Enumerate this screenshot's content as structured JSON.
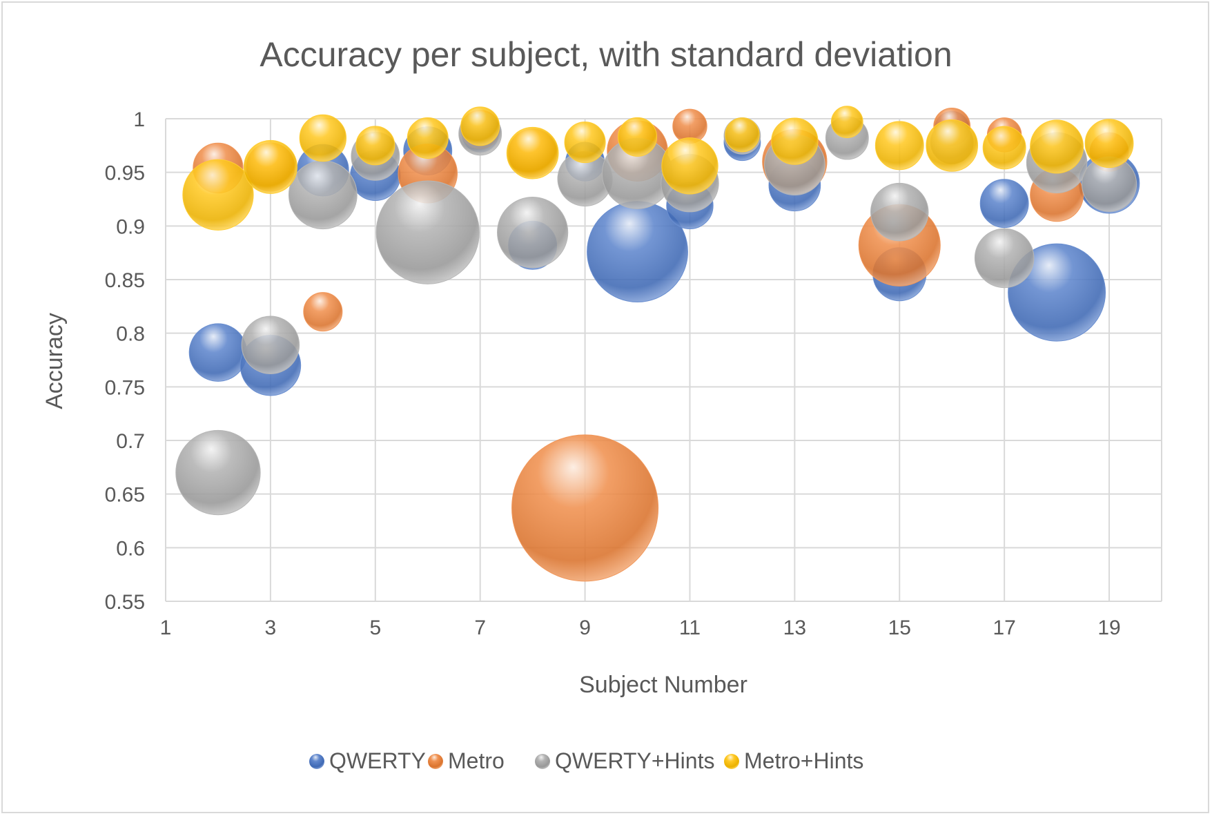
{
  "chart_data": {
    "type": "bubble",
    "title": "Accuracy per subject, with standard deviation",
    "xlabel": "Subject Number",
    "ylabel": "Accuracy",
    "xlim": [
      1,
      20
    ],
    "ylim": [
      0.55,
      1
    ],
    "xticks": [
      "1",
      "3",
      "5",
      "7",
      "9",
      "11",
      "13",
      "15",
      "17",
      "19"
    ],
    "yticks": [
      "0.55",
      "0.6",
      "0.65",
      "0.7",
      "0.75",
      "0.8",
      "0.85",
      "0.9",
      "0.95",
      "1"
    ],
    "grid": true,
    "legend_position": "bottom",
    "size_meaning": "standard deviation",
    "series": [
      {
        "name": "QWERTY",
        "color": "#4472c4",
        "points": [
          {
            "x": 2,
            "y": 0.782,
            "size": 0.02
          },
          {
            "x": 3,
            "y": 0.77,
            "size": 0.022
          },
          {
            "x": 4,
            "y": 0.952,
            "size": 0.016
          },
          {
            "x": 5,
            "y": 0.947,
            "size": 0.015
          },
          {
            "x": 6,
            "y": 0.97,
            "size": 0.014
          },
          {
            "x": 7,
            "y": 0.986,
            "size": 0.008
          },
          {
            "x": 8,
            "y": 0.882,
            "size": 0.014
          },
          {
            "x": 9,
            "y": 0.96,
            "size": 0.009
          },
          {
            "x": 10,
            "y": 0.876,
            "size": 0.061
          },
          {
            "x": 11,
            "y": 0.919,
            "size": 0.013
          },
          {
            "x": 12,
            "y": 0.978,
            "size": 0.008
          },
          {
            "x": 13,
            "y": 0.938,
            "size": 0.016
          },
          {
            "x": 15,
            "y": 0.855,
            "size": 0.017
          },
          {
            "x": 16,
            "y": 0.991,
            "size": 0.007
          },
          {
            "x": 17,
            "y": 0.921,
            "size": 0.014
          },
          {
            "x": 18,
            "y": 0.838,
            "size": 0.057
          },
          {
            "x": 19,
            "y": 0.94,
            "size": 0.022
          }
        ]
      },
      {
        "name": "Metro",
        "color": "#ed7d31",
        "points": [
          {
            "x": 2,
            "y": 0.954,
            "size": 0.015
          },
          {
            "x": 3,
            "y": 0.955,
            "size": 0.014
          },
          {
            "x": 4,
            "y": 0.82,
            "size": 0.009
          },
          {
            "x": 6,
            "y": 0.949,
            "size": 0.021
          },
          {
            "x": 7,
            "y": 0.99,
            "size": 0.009
          },
          {
            "x": 8,
            "y": 0.968,
            "size": 0.014
          },
          {
            "x": 10,
            "y": 0.97,
            "size": 0.022
          },
          {
            "x": 11,
            "y": 0.993,
            "size": 0.007
          },
          {
            "x": 13,
            "y": 0.96,
            "size": 0.025
          },
          {
            "x": 15,
            "y": 0.882,
            "size": 0.04
          },
          {
            "x": 16,
            "y": 0.993,
            "size": 0.008
          },
          {
            "x": 17,
            "y": 0.985,
            "size": 0.007
          },
          {
            "x": 18,
            "y": 0.929,
            "size": 0.017
          },
          {
            "x": 19,
            "y": 0.969,
            "size": 0.009
          },
          {
            "x": 9,
            "y": 0.637,
            "size": 0.129
          }
        ]
      },
      {
        "name": "QWERTY+Hints",
        "color": "#a5a5a5",
        "points": [
          {
            "x": 2,
            "y": 0.67,
            "size": 0.043
          },
          {
            "x": 3,
            "y": 0.789,
            "size": 0.02
          },
          {
            "x": 4,
            "y": 0.929,
            "size": 0.028
          },
          {
            "x": 5,
            "y": 0.965,
            "size": 0.014
          },
          {
            "x": 6,
            "y": 0.894,
            "size": 0.064
          },
          {
            "x": 7,
            "y": 0.986,
            "size": 0.011
          },
          {
            "x": 8,
            "y": 0.894,
            "size": 0.03
          },
          {
            "x": 9,
            "y": 0.944,
            "size": 0.018
          },
          {
            "x": 10,
            "y": 0.949,
            "size": 0.03
          },
          {
            "x": 11,
            "y": 0.94,
            "size": 0.02
          },
          {
            "x": 12,
            "y": 0.984,
            "size": 0.008
          },
          {
            "x": 13,
            "y": 0.957,
            "size": 0.022
          },
          {
            "x": 14,
            "y": 0.982,
            "size": 0.011
          },
          {
            "x": 15,
            "y": 0.913,
            "size": 0.02
          },
          {
            "x": 16,
            "y": 0.978,
            "size": 0.011
          },
          {
            "x": 17,
            "y": 0.87,
            "size": 0.021
          },
          {
            "x": 18,
            "y": 0.959,
            "size": 0.022
          },
          {
            "x": 19,
            "y": 0.939,
            "size": 0.018
          }
        ]
      },
      {
        "name": "Metro+Hints",
        "color": "#ffc000",
        "points": [
          {
            "x": 2,
            "y": 0.929,
            "size": 0.03
          },
          {
            "x": 3,
            "y": 0.955,
            "size": 0.017
          },
          {
            "x": 4,
            "y": 0.982,
            "size": 0.013
          },
          {
            "x": 5,
            "y": 0.975,
            "size": 0.009
          },
          {
            "x": 6,
            "y": 0.982,
            "size": 0.01
          },
          {
            "x": 7,
            "y": 0.993,
            "size": 0.009
          },
          {
            "x": 8,
            "y": 0.968,
            "size": 0.016
          },
          {
            "x": 9,
            "y": 0.978,
            "size": 0.01
          },
          {
            "x": 10,
            "y": 0.983,
            "size": 0.009
          },
          {
            "x": 11,
            "y": 0.956,
            "size": 0.019
          },
          {
            "x": 12,
            "y": 0.985,
            "size": 0.007
          },
          {
            "x": 13,
            "y": 0.979,
            "size": 0.013
          },
          {
            "x": 14,
            "y": 0.997,
            "size": 0.006
          },
          {
            "x": 15,
            "y": 0.975,
            "size": 0.014
          },
          {
            "x": 16,
            "y": 0.975,
            "size": 0.016
          },
          {
            "x": 17,
            "y": 0.973,
            "size": 0.011
          },
          {
            "x": 18,
            "y": 0.974,
            "size": 0.017
          },
          {
            "x": 19,
            "y": 0.977,
            "size": 0.014
          }
        ]
      }
    ]
  }
}
